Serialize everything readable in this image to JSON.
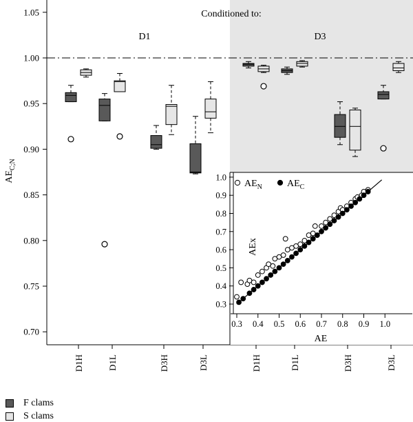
{
  "chart_data": {
    "type": "box",
    "title": "Conditioned to:",
    "panels": [
      "D1",
      "D3"
    ],
    "categories": [
      "D1H",
      "D1L",
      "D3H",
      "D3L"
    ],
    "ylabel": "AE",
    "ylabel_sub": "C;N",
    "ylim": [
      0.68,
      1.06
    ],
    "yticks": [
      0.7,
      0.75,
      0.8,
      0.85,
      0.9,
      0.95,
      1.0,
      1.05
    ],
    "reference_line": 1.0,
    "series": [
      {
        "name": "F clams",
        "color": "#595959",
        "boxes": {
          "D1": [
            {
              "category": "D1H",
              "whisker_low": 0.952,
              "q1": 0.952,
              "median": 0.959,
              "q3": 0.962,
              "whisker_high": 0.97,
              "outliers": [
                0.911
              ]
            },
            {
              "category": "D1L",
              "whisker_low": 0.931,
              "q1": 0.931,
              "median": 0.948,
              "q3": 0.955,
              "whisker_high": 0.961,
              "outliers": [
                0.796
              ]
            },
            {
              "category": "D3H",
              "whisker_low": 0.9,
              "q1": 0.901,
              "median": 0.905,
              "q3": 0.915,
              "whisker_high": 0.926,
              "outliers": []
            },
            {
              "category": "D3L",
              "whisker_low": 0.873,
              "q1": 0.874,
              "median": 0.875,
              "q3": 0.906,
              "whisker_high": 0.936,
              "outliers": []
            }
          ],
          "D3": [
            {
              "category": "D1H",
              "whisker_low": 0.989,
              "q1": 0.991,
              "median": 0.993,
              "q3": 0.994,
              "whisker_high": 0.996,
              "outliers": []
            },
            {
              "category": "D1L",
              "whisker_low": 0.982,
              "q1": 0.984,
              "median": 0.986,
              "q3": 0.988,
              "whisker_high": 0.99,
              "outliers": []
            },
            {
              "category": "D3H",
              "whisker_low": 0.905,
              "q1": 0.913,
              "median": 0.925,
              "q3": 0.938,
              "whisker_high": 0.952,
              "outliers": []
            },
            {
              "category": "D3L",
              "whisker_low": 0.955,
              "q1": 0.955,
              "median": 0.96,
              "q3": 0.963,
              "whisker_high": 0.97,
              "outliers": [
                0.901
              ]
            }
          ]
        }
      },
      {
        "name": "S clams",
        "color": "#e6e6e6",
        "boxes": {
          "D1": [
            {
              "category": "D1H",
              "whisker_low": 0.979,
              "q1": 0.981,
              "median": 0.984,
              "q3": 0.987,
              "whisker_high": 0.988,
              "outliers": []
            },
            {
              "category": "D1L",
              "whisker_low": 0.963,
              "q1": 0.963,
              "median": 0.974,
              "q3": 0.975,
              "whisker_high": 0.983,
              "outliers": [
                0.914
              ]
            },
            {
              "category": "D3H",
              "whisker_low": 0.916,
              "q1": 0.927,
              "median": 0.947,
              "q3": 0.949,
              "whisker_high": 0.97,
              "outliers": []
            },
            {
              "category": "D3L",
              "whisker_low": 0.918,
              "q1": 0.934,
              "median": 0.941,
              "q3": 0.955,
              "whisker_high": 0.974,
              "outliers": []
            }
          ],
          "D3": [
            {
              "category": "D1H",
              "whisker_low": 0.984,
              "q1": 0.985,
              "median": 0.988,
              "q3": 0.991,
              "whisker_high": 0.992,
              "outliers": [
                0.969
              ]
            },
            {
              "category": "D1L",
              "whisker_low": 0.99,
              "q1": 0.991,
              "median": 0.994,
              "q3": 0.996,
              "whisker_high": 0.997,
              "outliers": []
            },
            {
              "category": "D3H",
              "whisker_low": 0.892,
              "q1": 0.899,
              "median": 0.925,
              "q3": 0.943,
              "whisker_high": 0.945,
              "outliers": []
            },
            {
              "category": "D3L",
              "whisker_low": 0.984,
              "q1": 0.986,
              "median": 0.989,
              "q3": 0.994,
              "whisker_high": 0.996,
              "outliers": []
            }
          ]
        }
      }
    ],
    "inset": {
      "type": "scatter",
      "xlabel": "AE",
      "ylabel": "AEx",
      "xlim": [
        0.28,
        1.02
      ],
      "ylim": [
        0.28,
        1.02
      ],
      "xticks": [
        0.3,
        0.4,
        0.5,
        0.6,
        0.7,
        0.8,
        0.9,
        1.0
      ],
      "yticks": [
        0.3,
        0.4,
        0.5,
        0.6,
        0.7,
        0.8,
        0.9,
        1.0
      ],
      "identity_line": true,
      "legend": [
        {
          "label": "AE",
          "sub": "N",
          "marker": "open-circle"
        },
        {
          "label": "AE",
          "sub": "C",
          "marker": "filled-circle"
        }
      ],
      "series": [
        {
          "name": "AE_N",
          "marker": "open-circle",
          "points": [
            [
              0.3,
              0.34
            ],
            [
              0.32,
              0.42
            ],
            [
              0.35,
              0.41
            ],
            [
              0.36,
              0.43
            ],
            [
              0.38,
              0.42
            ],
            [
              0.4,
              0.46
            ],
            [
              0.42,
              0.48
            ],
            [
              0.44,
              0.5
            ],
            [
              0.45,
              0.52
            ],
            [
              0.47,
              0.51
            ],
            [
              0.48,
              0.55
            ],
            [
              0.5,
              0.56
            ],
            [
              0.52,
              0.57
            ],
            [
              0.53,
              0.66
            ],
            [
              0.54,
              0.6
            ],
            [
              0.56,
              0.61
            ],
            [
              0.58,
              0.62
            ],
            [
              0.6,
              0.63
            ],
            [
              0.62,
              0.65
            ],
            [
              0.64,
              0.68
            ],
            [
              0.66,
              0.69
            ],
            [
              0.67,
              0.73
            ],
            [
              0.7,
              0.73
            ],
            [
              0.72,
              0.75
            ],
            [
              0.74,
              0.77
            ],
            [
              0.76,
              0.79
            ],
            [
              0.78,
              0.81
            ],
            [
              0.79,
              0.83
            ],
            [
              0.8,
              0.82
            ],
            [
              0.82,
              0.84
            ],
            [
              0.84,
              0.86
            ],
            [
              0.86,
              0.88
            ],
            [
              0.87,
              0.89
            ],
            [
              0.89,
              0.9
            ],
            [
              0.9,
              0.92
            ],
            [
              0.92,
              0.93
            ]
          ]
        },
        {
          "name": "AE_C",
          "marker": "filled-circle",
          "points": [
            [
              0.31,
              0.31
            ],
            [
              0.33,
              0.33
            ],
            [
              0.36,
              0.36
            ],
            [
              0.38,
              0.38
            ],
            [
              0.4,
              0.4
            ],
            [
              0.42,
              0.42
            ],
            [
              0.44,
              0.44
            ],
            [
              0.46,
              0.46
            ],
            [
              0.48,
              0.48
            ],
            [
              0.5,
              0.5
            ],
            [
              0.52,
              0.52
            ],
            [
              0.54,
              0.54
            ],
            [
              0.56,
              0.56
            ],
            [
              0.58,
              0.58
            ],
            [
              0.6,
              0.6
            ],
            [
              0.62,
              0.62
            ],
            [
              0.64,
              0.64
            ],
            [
              0.66,
              0.66
            ],
            [
              0.68,
              0.68
            ],
            [
              0.7,
              0.7
            ],
            [
              0.72,
              0.72
            ],
            [
              0.74,
              0.74
            ],
            [
              0.76,
              0.76
            ],
            [
              0.78,
              0.78
            ],
            [
              0.8,
              0.8
            ],
            [
              0.82,
              0.82
            ],
            [
              0.84,
              0.84
            ],
            [
              0.86,
              0.86
            ],
            [
              0.88,
              0.88
            ],
            [
              0.9,
              0.9
            ],
            [
              0.92,
              0.92
            ]
          ]
        }
      ]
    }
  }
}
